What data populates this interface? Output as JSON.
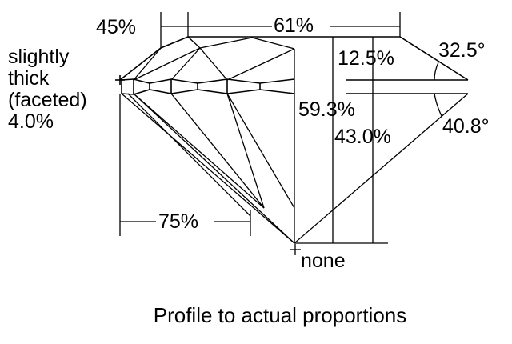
{
  "labels": {
    "crown_angle_ratio": "45%",
    "table": "61%",
    "girdle_line1": "slightly",
    "girdle_line2": "thick",
    "girdle_line3": "(faceted)",
    "girdle_value": "4.0%",
    "crown_height": "12.5%",
    "crown_angle": "32.5°",
    "total_depth": "59.3%",
    "pavilion_depth": "43.0%",
    "pavilion_angle": "40.8°",
    "lower_half": "75%",
    "culet": "none"
  },
  "caption": "Profile to actual proportions",
  "colors": {
    "line": "#000000",
    "background": "#ffffff"
  }
}
